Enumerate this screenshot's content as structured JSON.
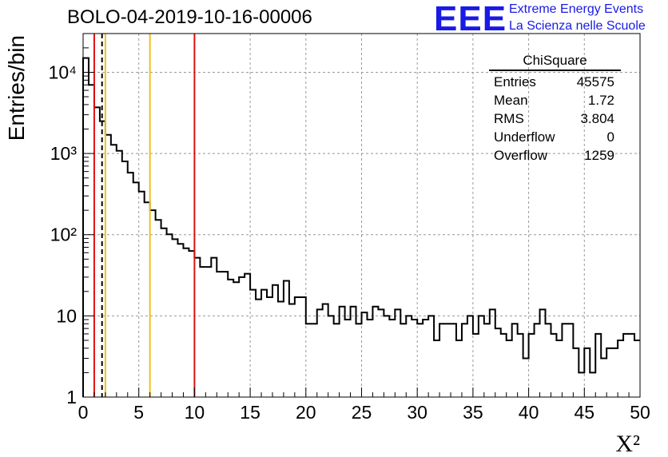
{
  "figure": {
    "title": "BOLO-04-2019-10-16-00006",
    "logo_text": "EEE",
    "logo_line1": "Extreme Energy Events",
    "logo_line2": "La Scienza nelle Scuole"
  },
  "stats_box": {
    "title": "ChiSquare",
    "rows": [
      {
        "label": "Entries",
        "value": "45575"
      },
      {
        "label": "Mean",
        "value": "1.72"
      },
      {
        "label": "RMS",
        "value": "3.804"
      },
      {
        "label": "Underflow",
        "value": "0"
      },
      {
        "label": "Overflow",
        "value": "1259"
      }
    ]
  },
  "colors": {
    "red_line": "#e01010",
    "yellow_line": "#f0c020",
    "grid": "#999999",
    "logo": "#1a1ae6"
  },
  "chart_data": {
    "type": "histogram",
    "xlabel": "X²",
    "ylabel": "Entries/bin",
    "xlim": [
      0,
      50
    ],
    "ylim": [
      1,
      30000
    ],
    "yscale": "log",
    "grid": true,
    "bin_width": 0.5,
    "xticks": [
      0,
      5,
      10,
      15,
      20,
      25,
      30,
      35,
      40,
      45,
      50
    ],
    "xtick_labels": [
      "0",
      "5",
      "10",
      "15",
      "20",
      "25",
      "30",
      "35",
      "40",
      "45",
      "50"
    ],
    "yticks": [
      1,
      10,
      100,
      1000,
      10000
    ],
    "ytick_labels": [
      "1",
      "10",
      "10²",
      "10³",
      "10⁴"
    ],
    "bin_counts": [
      15000,
      7000,
      3700,
      2500,
      1700,
      1280,
      1080,
      800,
      580,
      440,
      340,
      250,
      200,
      152,
      120,
      101,
      88,
      77,
      68,
      63,
      52,
      40,
      40,
      52,
      35,
      35,
      28,
      26,
      30,
      33,
      21,
      16,
      21,
      17,
      24,
      15,
      27,
      14,
      17,
      17,
      8,
      8,
      12,
      14,
      10,
      8,
      13,
      9,
      13,
      8,
      11,
      9,
      13,
      12,
      10,
      9,
      12,
      8,
      10,
      9,
      8,
      9,
      10,
      5,
      8,
      8,
      8,
      5,
      8,
      10,
      6,
      10,
      8,
      12,
      7,
      6,
      5,
      8,
      6,
      3,
      6,
      8,
      12,
      8,
      6,
      5,
      8,
      8,
      4,
      2,
      4,
      2,
      6,
      3,
      4,
      4,
      5,
      6,
      6,
      5
    ],
    "vertical_lines": [
      {
        "x": 1.0,
        "color": "red",
        "style": "solid"
      },
      {
        "x": 1.7,
        "color": "black",
        "style": "dashed"
      },
      {
        "x": 2.0,
        "color": "yellow",
        "style": "solid"
      },
      {
        "x": 6.0,
        "color": "yellow",
        "style": "solid"
      },
      {
        "x": 10.0,
        "color": "red",
        "style": "solid"
      }
    ]
  }
}
